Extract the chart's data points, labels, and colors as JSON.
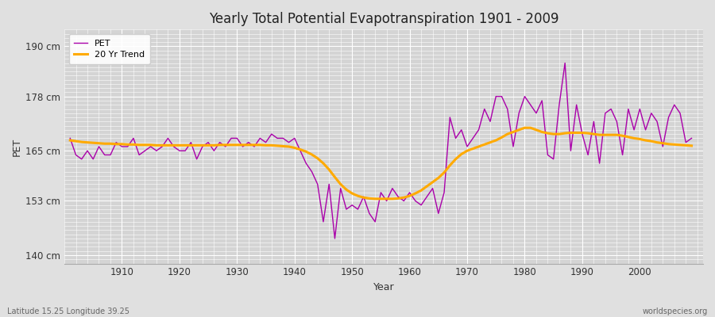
{
  "title": "Yearly Total Potential Evapotranspiration 1901 - 2009",
  "xlabel": "Year",
  "ylabel": "PET",
  "bottom_left_label": "Latitude 15.25 Longitude 39.25",
  "bottom_right_label": "worldspecies.org",
  "pet_color": "#aa00aa",
  "trend_color": "#ffaa00",
  "bg_color": "#e0e0e0",
  "plot_bg_color": "#d4d4d4",
  "ylim": [
    138,
    194
  ],
  "yticks": [
    140,
    153,
    165,
    178,
    190
  ],
  "ytick_labels": [
    "140 cm",
    "153 cm",
    "165 cm",
    "178 cm",
    "190 cm"
  ],
  "xlim": [
    1900,
    2011
  ],
  "xticks": [
    1910,
    1920,
    1930,
    1940,
    1950,
    1960,
    1970,
    1980,
    1990,
    2000
  ],
  "years": [
    1901,
    1902,
    1903,
    1904,
    1905,
    1906,
    1907,
    1908,
    1909,
    1910,
    1911,
    1912,
    1913,
    1914,
    1915,
    1916,
    1917,
    1918,
    1919,
    1920,
    1921,
    1922,
    1923,
    1924,
    1925,
    1926,
    1927,
    1928,
    1929,
    1930,
    1931,
    1932,
    1933,
    1934,
    1935,
    1936,
    1937,
    1938,
    1939,
    1940,
    1941,
    1942,
    1943,
    1944,
    1945,
    1946,
    1947,
    1948,
    1949,
    1950,
    1951,
    1952,
    1953,
    1954,
    1955,
    1956,
    1957,
    1958,
    1959,
    1960,
    1961,
    1962,
    1963,
    1964,
    1965,
    1966,
    1967,
    1968,
    1969,
    1970,
    1971,
    1972,
    1973,
    1974,
    1975,
    1976,
    1977,
    1978,
    1979,
    1980,
    1981,
    1982,
    1983,
    1984,
    1985,
    1986,
    1987,
    1988,
    1989,
    1990,
    1991,
    1992,
    1993,
    1994,
    1995,
    1996,
    1997,
    1998,
    1999,
    2000,
    2001,
    2002,
    2003,
    2004,
    2005,
    2006,
    2007,
    2008,
    2009
  ],
  "pet_values": [
    168,
    164,
    163,
    165,
    163,
    166,
    164,
    164,
    167,
    166,
    166,
    168,
    164,
    165,
    166,
    165,
    166,
    168,
    166,
    165,
    165,
    167,
    163,
    166,
    167,
    165,
    167,
    166,
    168,
    168,
    166,
    167,
    166,
    168,
    167,
    169,
    168,
    168,
    167,
    168,
    165,
    162,
    160,
    157,
    148,
    157,
    144,
    156,
    151,
    152,
    151,
    154,
    150,
    148,
    155,
    153,
    156,
    154,
    153,
    155,
    153,
    152,
    154,
    156,
    150,
    155,
    173,
    168,
    170,
    166,
    168,
    170,
    175,
    172,
    178,
    178,
    175,
    166,
    174,
    178,
    176,
    174,
    177,
    164,
    163,
    176,
    186,
    165,
    176,
    169,
    164,
    172,
    162,
    174,
    175,
    172,
    164,
    175,
    170,
    175,
    170,
    174,
    172,
    166,
    173,
    176,
    174,
    167,
    168
  ],
  "trend_values": [
    167.5,
    167.3,
    167.1,
    167.0,
    166.9,
    166.8,
    166.7,
    166.7,
    166.6,
    166.6,
    166.5,
    166.5,
    166.4,
    166.4,
    166.4,
    166.3,
    166.3,
    166.3,
    166.3,
    166.3,
    166.3,
    166.3,
    166.3,
    166.3,
    166.3,
    166.3,
    166.4,
    166.4,
    166.4,
    166.4,
    166.4,
    166.4,
    166.4,
    166.4,
    166.3,
    166.3,
    166.2,
    166.1,
    166.0,
    165.7,
    165.3,
    164.8,
    164.1,
    163.2,
    162.0,
    160.5,
    158.7,
    157.0,
    155.7,
    154.8,
    154.2,
    153.8,
    153.6,
    153.5,
    153.5,
    153.5,
    153.5,
    153.6,
    153.8,
    154.2,
    154.8,
    155.5,
    156.5,
    157.5,
    158.5,
    159.8,
    161.5,
    163.0,
    164.2,
    165.0,
    165.5,
    166.0,
    166.5,
    167.0,
    167.5,
    168.2,
    169.0,
    169.5,
    170.0,
    170.5,
    170.5,
    170.0,
    169.5,
    169.2,
    169.0,
    169.0,
    169.2,
    169.3,
    169.3,
    169.3,
    169.2,
    169.0,
    168.8,
    168.8,
    168.8,
    168.8,
    168.6,
    168.3,
    168.0,
    167.8,
    167.5,
    167.3,
    167.0,
    166.8,
    166.6,
    166.5,
    166.4,
    166.3,
    166.2
  ]
}
